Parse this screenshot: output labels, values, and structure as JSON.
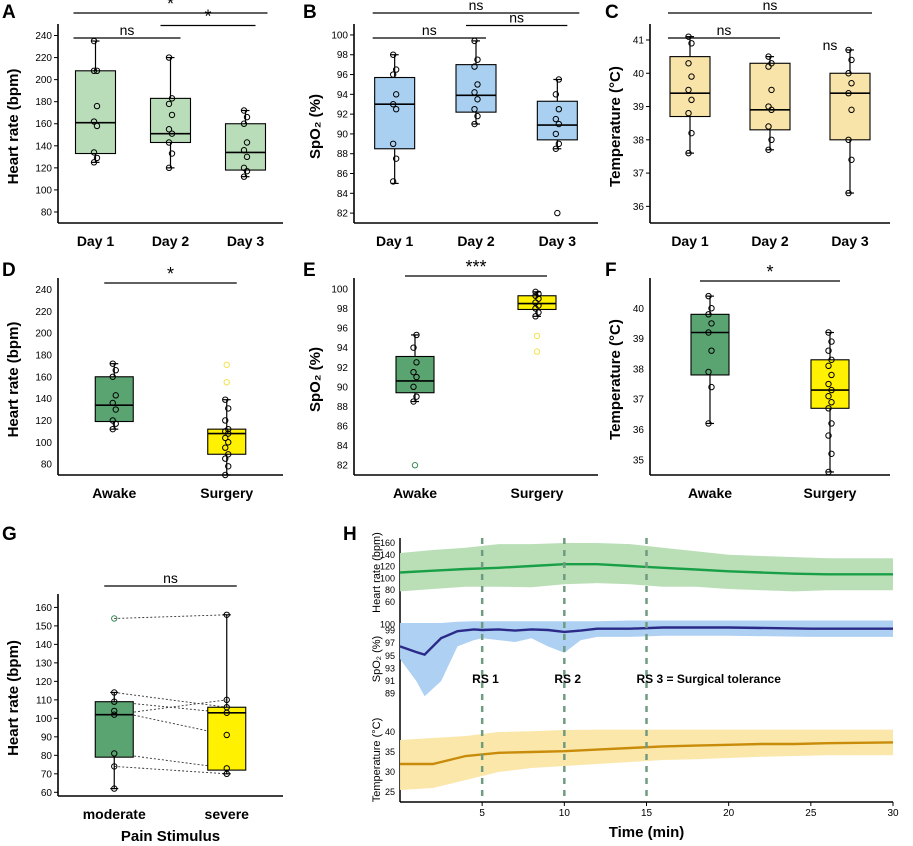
{
  "colors": {
    "green_light": "#b9dcb9",
    "green_dark": "#5aa471",
    "blue": "#a9d0f0",
    "tan": "#f8e4a8",
    "yellow": "#fff100",
    "yellow_dot": "#f4e24a",
    "hr_band": "#b6ddb3",
    "hr_line": "#19a046",
    "spo2_band": "#a9cdf2",
    "spo2_line": "#2b2a88",
    "temp_band": "#fbe6a5",
    "temp_line": "#c88c0a",
    "rs_line": "#6f9c80"
  },
  "chart_data": [
    {
      "panel": "A",
      "type": "box",
      "ylabel": "Heart rate (bpm)",
      "ylim": [
        70,
        245
      ],
      "yticks": [
        80,
        100,
        120,
        140,
        160,
        180,
        200,
        220,
        240
      ],
      "categories": [
        "Day 1",
        "Day 2",
        "Day 3"
      ],
      "boxes": [
        {
          "fill": "green_light",
          "min": 125,
          "q1": 133,
          "median": 161,
          "q3": 208,
          "max": 235,
          "points": [
            125,
            129,
            134,
            158,
            162,
            176,
            208,
            208,
            235
          ]
        },
        {
          "fill": "green_light",
          "min": 120,
          "q1": 143,
          "median": 151,
          "q3": 183,
          "max": 220,
          "points": [
            120,
            133,
            143,
            151,
            155,
            168,
            178,
            183,
            220
          ]
        },
        {
          "fill": "green_light",
          "min": 112,
          "q1": 118,
          "median": 134,
          "q3": 160,
          "max": 172,
          "points": [
            112,
            117,
            120,
            130,
            136,
            143,
            160,
            166,
            172
          ]
        }
      ],
      "sig": [
        {
          "from": 0,
          "to": 2,
          "label": "*",
          "level": 1
        },
        {
          "from": 0,
          "to": 1,
          "label": "ns",
          "level": 0
        },
        {
          "from": 1,
          "to": 2,
          "label": "*",
          "level": -1
        }
      ]
    },
    {
      "panel": "B",
      "type": "box",
      "ylabel": "SpO₂ (%)",
      "ylim": [
        81,
        100.5
      ],
      "yticks": [
        82,
        84,
        86,
        88,
        90,
        92,
        94,
        96,
        98,
        100
      ],
      "categories": [
        "Day 1",
        "Day 2",
        "Day 3"
      ],
      "boxes": [
        {
          "fill": "blue",
          "min": 85,
          "q1": 88.5,
          "median": 93,
          "q3": 95.7,
          "max": 98,
          "points": [
            85.2,
            87.5,
            89,
            92.5,
            93,
            94,
            96,
            96.5,
            98
          ]
        },
        {
          "fill": "blue",
          "min": 91,
          "q1": 92.2,
          "median": 93.9,
          "q3": 97,
          "max": 99.4,
          "points": [
            91,
            91.8,
            92.5,
            93.5,
            94.2,
            95,
            96.8,
            97.5,
            99.4
          ]
        },
        {
          "fill": "blue",
          "min": 88.5,
          "q1": 89.4,
          "median": 90.9,
          "q3": 93.3,
          "max": 95.5,
          "outliers": [
            82
          ],
          "points": [
            88.5,
            89,
            90,
            91,
            91.5,
            92.5,
            94,
            95.5
          ]
        }
      ],
      "sig": [
        {
          "from": 0,
          "to": 2,
          "label": "ns",
          "level": 1
        },
        {
          "from": 0,
          "to": 1,
          "label": "ns",
          "level": 0
        },
        {
          "from": 1,
          "to": 2,
          "label": "ns",
          "level": -1
        }
      ]
    },
    {
      "panel": "C",
      "type": "box",
      "ylabel": "Temperature (°C)",
      "ylim": [
        35.5,
        41.3
      ],
      "yticks": [
        36,
        37,
        38,
        39,
        40,
        41
      ],
      "categories": [
        "Day 1",
        "Day 2",
        "Day 3"
      ],
      "boxes": [
        {
          "fill": "tan",
          "min": 37.6,
          "q1": 38.7,
          "median": 39.4,
          "q3": 40.5,
          "max": 41.1,
          "points": [
            37.6,
            38.2,
            38.8,
            39.2,
            39.5,
            39.9,
            40.3,
            40.9,
            41.1
          ]
        },
        {
          "fill": "tan",
          "min": 37.7,
          "q1": 38.3,
          "median": 38.9,
          "q3": 40.3,
          "max": 40.5,
          "points": [
            37.7,
            38,
            38.4,
            38.9,
            39,
            39.5,
            40.2,
            40.3,
            40.5
          ]
        },
        {
          "fill": "tan",
          "min": 36.4,
          "q1": 38,
          "median": 39.4,
          "q3": 40,
          "max": 40.7,
          "points": [
            36.4,
            37.4,
            38,
            38.9,
            39.4,
            39.7,
            40,
            40.4,
            40.7
          ]
        }
      ],
      "sig": [
        {
          "from": 0,
          "to": 2,
          "label": "ns",
          "level": 1
        },
        {
          "from": 0,
          "to": 1,
          "label": "ns",
          "level": 0
        },
        {
          "from": 1,
          "to": 2,
          "label": "ns",
          "level": -2
        }
      ]
    },
    {
      "panel": "D",
      "type": "box",
      "ylabel": "Heart rate (bpm)",
      "ylim": [
        70,
        245
      ],
      "yticks": [
        80,
        100,
        120,
        140,
        160,
        180,
        200,
        220,
        240
      ],
      "categories": [
        "Awake",
        "Surgery"
      ],
      "boxes": [
        {
          "fill": "green_dark",
          "min": 112,
          "q1": 119,
          "median": 134,
          "q3": 160,
          "max": 172,
          "points": [
            112,
            117,
            120,
            130,
            136,
            143,
            160,
            166,
            172
          ]
        },
        {
          "fill": "yellow",
          "min": 70,
          "q1": 89,
          "median": 108,
          "q3": 112,
          "max": 139,
          "outliers": [
            155,
            171
          ],
          "points": [
            70,
            78,
            85,
            89,
            95,
            100,
            104,
            108,
            110,
            112,
            120,
            131,
            139
          ]
        }
      ],
      "sig": [
        {
          "from": 0,
          "to": 1,
          "label": "*",
          "level": 0
        }
      ]
    },
    {
      "panel": "E",
      "type": "box",
      "ylabel": "SpO₂ (%)",
      "ylim": [
        81,
        100.5
      ],
      "yticks": [
        82,
        84,
        86,
        88,
        90,
        92,
        94,
        96,
        98,
        100
      ],
      "categories": [
        "Awake",
        "Surgery"
      ],
      "boxes": [
        {
          "fill": "green_dark",
          "min": 88.5,
          "q1": 89.4,
          "median": 90.6,
          "q3": 93.1,
          "max": 95.3,
          "outliers": [
            82
          ],
          "points": [
            88.5,
            89,
            90,
            91,
            91.5,
            92.5,
            94,
            95.3
          ]
        },
        {
          "fill": "yellow",
          "min": 97.2,
          "q1": 97.9,
          "median": 98.5,
          "q3": 99.3,
          "max": 99.7,
          "outliers": [
            95.2,
            93.6
          ],
          "points": [
            97.2,
            97.6,
            98,
            98.3,
            98.6,
            99,
            99.3,
            99.5,
            99.7
          ]
        }
      ],
      "sig": [
        {
          "from": 0,
          "to": 1,
          "label": "***",
          "level": 0
        }
      ]
    },
    {
      "panel": "F",
      "type": "box",
      "ylabel": "Temperature (°C)",
      "ylim": [
        34.5,
        40.8
      ],
      "yticks": [
        35,
        36,
        37,
        38,
        39,
        40
      ],
      "categories": [
        "Awake",
        "Surgery"
      ],
      "boxes": [
        {
          "fill": "green_dark",
          "min": 36.2,
          "q1": 37.8,
          "median": 39.2,
          "q3": 39.8,
          "max": 40.4,
          "points": [
            36.2,
            37.4,
            37.9,
            38.6,
            39.2,
            39.5,
            39.8,
            40,
            40.4
          ]
        },
        {
          "fill": "yellow",
          "min": 34.6,
          "q1": 36.7,
          "median": 37.3,
          "q3": 38.3,
          "max": 39.2,
          "points": [
            34.6,
            35.2,
            35.8,
            36.2,
            36.7,
            36.9,
            37.1,
            37.3,
            37.5,
            37.8,
            38.1,
            38.3,
            38.6,
            38.9,
            39.2
          ]
        }
      ],
      "sig": [
        {
          "from": 0,
          "to": 1,
          "label": "*",
          "level": 0
        }
      ]
    },
    {
      "panel": "G",
      "type": "box",
      "ylabel": "Heart rate (bpm)",
      "xlabel": "Pain Stimulus",
      "ylim": [
        58,
        164
      ],
      "yticks": [
        60,
        70,
        80,
        90,
        100,
        110,
        120,
        130,
        140,
        150,
        160
      ],
      "categories": [
        "moderate",
        "severe"
      ],
      "boxes": [
        {
          "fill": "green_dark",
          "min": 62,
          "q1": 79,
          "median": 102,
          "q3": 109,
          "max": 114,
          "outliers": [
            154
          ],
          "points": [
            62,
            74,
            81,
            102,
            104,
            109,
            114
          ]
        },
        {
          "fill": "yellow",
          "min": 70,
          "q1": 72,
          "median": 103,
          "q3": 106,
          "max": 156,
          "points": [
            70,
            73,
            91,
            103,
            106,
            110,
            156
          ]
        }
      ],
      "pairs": [
        [
          154,
          156
        ],
        [
          114,
          106
        ],
        [
          109,
          103
        ],
        [
          104,
          91
        ],
        [
          102,
          110
        ],
        [
          81,
          73
        ],
        [
          74,
          70
        ]
      ],
      "sig": [
        {
          "from": 0,
          "to": 1,
          "label": "ns",
          "level": 0
        }
      ]
    },
    {
      "panel": "H",
      "type": "line",
      "xlabel": "Time (min)",
      "xlim": [
        0,
        30
      ],
      "xticks": [
        5,
        10,
        15,
        20,
        25,
        30
      ],
      "markers": [
        {
          "x": 5,
          "label": "RS 1"
        },
        {
          "x": 10,
          "label": "RS 2"
        },
        {
          "x": 15,
          "label": "RS 3 = Surgical tolerance"
        }
      ],
      "subplots": [
        {
          "ylabel": "Heart rate (bpm)",
          "ylim": [
            55,
            165
          ],
          "yticks": [
            60,
            80,
            100,
            120,
            140,
            160
          ],
          "x": [
            0,
            2,
            4,
            6,
            8,
            10,
            12,
            14,
            16,
            18,
            20,
            22,
            24,
            26,
            28,
            30
          ],
          "mean": [
            110,
            113,
            116,
            118,
            121,
            124,
            124,
            121,
            118,
            115,
            112,
            110,
            108,
            107,
            107,
            107
          ],
          "upper": [
            143,
            148,
            152,
            158,
            158,
            160,
            160,
            158,
            152,
            146,
            140,
            138,
            136,
            134,
            134,
            134
          ],
          "lower": [
            78,
            82,
            86,
            86,
            85,
            90,
            92,
            90,
            86,
            86,
            82,
            80,
            78,
            80,
            80,
            80
          ],
          "line": "hr_line",
          "band": "hr_band"
        },
        {
          "ylabel": "SpO₂ (%)",
          "ylim": [
            88,
            101
          ],
          "yticks": [
            89,
            91,
            93,
            95,
            97,
            99,
            100
          ],
          "x": [
            0,
            1,
            1.5,
            2.5,
            3.5,
            4.5,
            5,
            6,
            7,
            8,
            9,
            10,
            11,
            12,
            14,
            16,
            20,
            25,
            30
          ],
          "mean": [
            96.5,
            95.6,
            95.2,
            97.8,
            98.9,
            99.2,
            99.1,
            99.2,
            99,
            99.2,
            99.1,
            98.8,
            99,
            99.3,
            99.3,
            99.5,
            99.5,
            99.3,
            99.3
          ],
          "upper": [
            100.2,
            100.2,
            100.2,
            100.2,
            100.4,
            100.5,
            100.5,
            100.5,
            100.5,
            100.5,
            100.5,
            100.5,
            100.5,
            100.5,
            100.6,
            100.6,
            100.6,
            100.6,
            100.6
          ],
          "lower": [
            94.5,
            91,
            88.6,
            91,
            96.5,
            97.5,
            97.8,
            97.5,
            97.2,
            97.8,
            96.5,
            95.5,
            97.5,
            98,
            98,
            98.2,
            98.2,
            98,
            98
          ],
          "line": "spo2_line",
          "band": "spo2_band"
        },
        {
          "ylabel": "Temperature (°C)",
          "ylim": [
            23,
            43
          ],
          "yticks": [
            25,
            30,
            35,
            40
          ],
          "x": [
            0,
            2,
            4,
            6,
            8,
            10,
            12,
            14,
            16,
            18,
            20,
            22,
            24,
            26,
            28,
            30
          ],
          "mean": [
            32,
            32,
            34,
            34.8,
            35,
            35.2,
            35.6,
            36,
            36.4,
            36.6,
            36.8,
            37,
            37,
            37.2,
            37.3,
            37.4
          ],
          "upper": [
            38,
            38.5,
            39,
            40,
            40.2,
            40.5,
            40.6,
            40.6,
            40.6,
            40.6,
            40.6,
            40.6,
            40.6,
            40.6,
            40.6,
            40.6
          ],
          "lower": [
            25.5,
            26,
            28,
            30,
            31,
            31.5,
            32,
            32.5,
            33,
            33.2,
            33.5,
            33.8,
            34,
            34.2,
            34.2,
            34.2
          ],
          "line": "temp_line",
          "band": "temp_band"
        }
      ]
    }
  ]
}
